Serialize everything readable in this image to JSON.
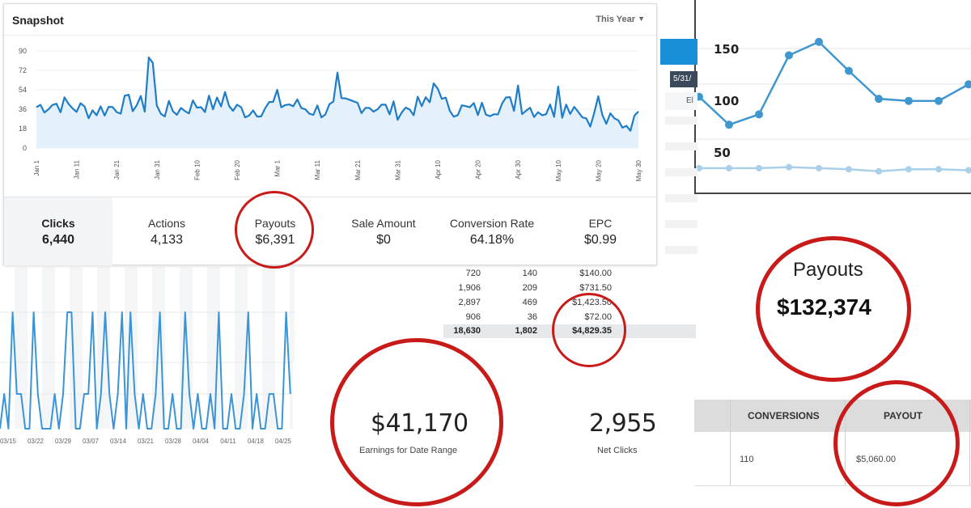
{
  "snapshot": {
    "title": "Snapshot",
    "period": "This Year",
    "y_ticks": [
      "90",
      "72",
      "54",
      "36",
      "18",
      "0"
    ],
    "x_ticks": [
      "Jan 1",
      "Jan 11",
      "Jan 21",
      "Jan 31",
      "Feb 10",
      "Feb 20",
      "Mar 1",
      "Mar 11",
      "Mar 21",
      "Mar 31",
      "Apr 10",
      "Apr 20",
      "Apr 30",
      "May 10",
      "May 20",
      "May 30"
    ],
    "line_color": "#1f7dc8",
    "fill_color": "#e4f0fb",
    "stats": [
      {
        "label": "Clicks",
        "value": "6,440"
      },
      {
        "label": "Actions",
        "value": "4,133"
      },
      {
        "label": "Payouts",
        "value": "$6,391"
      },
      {
        "label": "Sale Amount",
        "value": "$0"
      },
      {
        "label": "Conversion Rate",
        "value": "64.18%"
      },
      {
        "label": "EPC",
        "value": "$0.99"
      }
    ]
  },
  "right_chart": {
    "y_ticks": [
      "150",
      "100",
      "50"
    ],
    "series_upper": [
      105,
      78,
      88,
      145,
      158,
      130,
      103,
      101,
      101,
      117
    ],
    "series_lower": [
      36,
      36,
      36,
      37,
      36,
      35,
      33,
      35,
      35,
      34
    ],
    "line_color": "#3f97cf",
    "lower_color": "#a9cfe9"
  },
  "bg_table": {
    "date_chip": "5/31/"
  },
  "spike_chart": {
    "x_ticks": [
      "03/15",
      "03/22",
      "03/29",
      "03/07",
      "03/14",
      "03/21",
      "03/28",
      "04/04",
      "04/11",
      "04/18",
      "04/25"
    ],
    "line_color": "#3a94d8"
  },
  "numbers_table": {
    "rows": [
      [
        "720",
        "140",
        "$140.00"
      ],
      [
        "1,906",
        "209",
        "$731.50"
      ],
      [
        "2,897",
        "469",
        "$1,423.50"
      ],
      [
        "906",
        "36",
        "$72.00"
      ]
    ],
    "total": [
      "18,630",
      "1,802",
      "$4,829.35"
    ]
  },
  "earnings": {
    "value": "$41,170",
    "label": "Earnings for Date Range",
    "clicks_value": "2,955",
    "clicks_label": "Net Clicks"
  },
  "payouts_big": {
    "label": "Payouts",
    "value": "$132,374"
  },
  "conversions_table": {
    "headers": [
      "CONVERSIONS",
      "PAYOUT"
    ],
    "row": [
      "110",
      "$5,060.00"
    ]
  },
  "colors": {
    "highlight_ring": "#c91a1a"
  }
}
